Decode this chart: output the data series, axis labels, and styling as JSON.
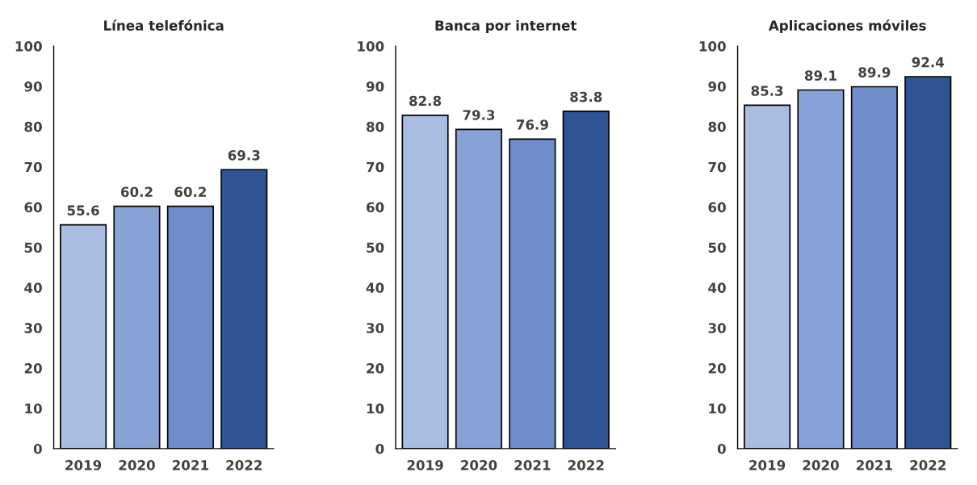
{
  "chart_data": [
    {
      "type": "bar",
      "title": "Línea telefónica",
      "categories": [
        "2019",
        "2020",
        "2021",
        "2022"
      ],
      "values": [
        55.6,
        60.2,
        60.2,
        69.3
      ],
      "colors": [
        "#a9bde3",
        "#87a2d6",
        "#6f8dca",
        "#2f5597"
      ],
      "ylim": [
        0,
        100
      ],
      "yticks": [
        0,
        10,
        20,
        30,
        40,
        50,
        60,
        70,
        80,
        90,
        100
      ],
      "data_labels": true
    },
    {
      "type": "bar",
      "title": "Banca por internet",
      "categories": [
        "2019",
        "2020",
        "2021",
        "2022"
      ],
      "values": [
        82.8,
        79.3,
        76.9,
        83.8
      ],
      "colors": [
        "#a9bde3",
        "#87a2d6",
        "#6f8dca",
        "#2f5597"
      ],
      "ylim": [
        0,
        100
      ],
      "yticks": [
        0,
        10,
        20,
        30,
        40,
        50,
        60,
        70,
        80,
        90,
        100
      ],
      "data_labels": true
    },
    {
      "type": "bar",
      "title": "Aplicaciones móviles",
      "categories": [
        "2019",
        "2020",
        "2021",
        "2022"
      ],
      "values": [
        85.3,
        89.1,
        89.9,
        92.4
      ],
      "colors": [
        "#a9bde3",
        "#87a2d6",
        "#6f8dca",
        "#2f5597"
      ],
      "ylim": [
        0,
        100
      ],
      "yticks": [
        0,
        10,
        20,
        30,
        40,
        50,
        60,
        70,
        80,
        90,
        100
      ],
      "data_labels": true
    }
  ]
}
